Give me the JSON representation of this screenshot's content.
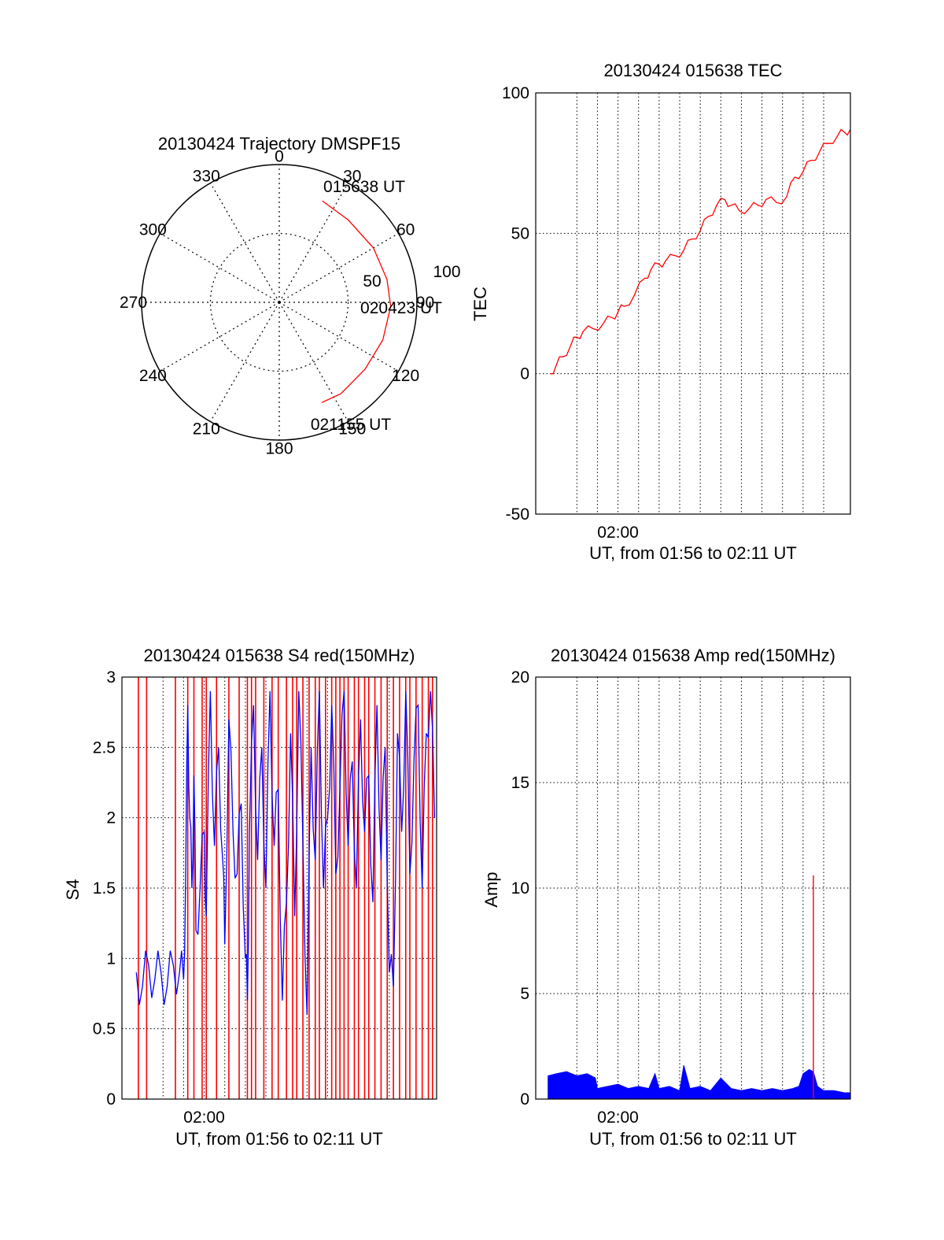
{
  "chart_data": [
    {
      "type": "polar",
      "title": "20130424 Trajectory DMSPF15",
      "angle_labels": [
        "0",
        "30",
        "60",
        "90",
        "120",
        "150",
        "180",
        "210",
        "240",
        "270",
        "300",
        "330"
      ],
      "radial_labels": [
        "50",
        "100"
      ],
      "radial_range": [
        0,
        100
      ],
      "grid": true,
      "series": [
        {
          "color": "#ff0000",
          "points": [
            {
              "az": 23,
              "r": 80
            },
            {
              "az": 40,
              "r": 78
            },
            {
              "az": 60,
              "r": 79
            },
            {
              "az": 78,
              "r": 80
            },
            {
              "az": 92,
              "r": 81
            },
            {
              "az": 110,
              "r": 80
            },
            {
              "az": 128,
              "r": 79
            },
            {
              "az": 146,
              "r": 80
            },
            {
              "az": 157,
              "r": 79
            }
          ]
        }
      ],
      "annotations": [
        {
          "text": "015638 UT",
          "az": 23,
          "r": 80
        },
        {
          "text": "020423 UT",
          "az": 92,
          "r": 81
        },
        {
          "text": "021155 UT",
          "az": 157,
          "r": 79
        }
      ]
    },
    {
      "type": "line",
      "title": "20130424 015638 TEC",
      "xlabel": "UT, from 01:56 to 02:11 UT",
      "ylabel": "TEC",
      "xlim": [
        0,
        15.3
      ],
      "ylim": [
        -50,
        100
      ],
      "yticks": [
        -50,
        0,
        50,
        100
      ],
      "xticks": [
        {
          "value": 4,
          "label": "02:00"
        }
      ],
      "x_gridlines": [
        2,
        3,
        4,
        5,
        6,
        7,
        8,
        9,
        10,
        11,
        12,
        13,
        14
      ],
      "grid": true,
      "series": [
        {
          "color": "#ff0000",
          "x": [
            0.7,
            1.0,
            1.3,
            1.7,
            2.0,
            2.3,
            2.8,
            3.3,
            3.7,
            4.0,
            4.3,
            4.8,
            5.3,
            5.6,
            6.0,
            6.3,
            6.8,
            7.2,
            7.6,
            8.0,
            8.4,
            8.8,
            9.2,
            9.5,
            9.9,
            10.4,
            10.8,
            11.2,
            11.7,
            12.2,
            12.6,
            13.0,
            13.4,
            13.8,
            14.2,
            14.7,
            15.0,
            15.3
          ],
          "y": [
            0,
            3,
            6,
            10,
            13,
            15,
            16,
            18,
            20,
            22,
            24,
            28,
            34,
            37,
            39,
            40,
            42,
            44,
            48,
            51,
            56,
            60,
            62,
            60,
            58,
            59,
            60,
            62,
            61,
            63,
            70,
            72,
            76,
            79,
            82,
            85,
            86,
            87
          ]
        }
      ]
    },
    {
      "type": "line",
      "title": "20130424 015638 S4 red(150MHz)",
      "xlabel": "UT, from 01:56 to 02:11 UT",
      "ylabel": "S4",
      "xlim": [
        0,
        15.3
      ],
      "ylim": [
        0,
        3
      ],
      "yticks": [
        0,
        0.5,
        1,
        1.5,
        2,
        2.5,
        3
      ],
      "ytick_labels": [
        "0",
        "0.5",
        "1",
        "1.5",
        "2",
        "2.5",
        "3"
      ],
      "xticks": [
        {
          "value": 4,
          "label": "02:00"
        }
      ],
      "x_gridlines": [
        2,
        3,
        4,
        5,
        6,
        7,
        8,
        9,
        10,
        11,
        12,
        13,
        14
      ],
      "grid": true,
      "red_spike_x": [
        0.8,
        1.2,
        2.6,
        3.2,
        3.5,
        3.9,
        4.1,
        4.6,
        5.2,
        5.7,
        6.1,
        6.3,
        6.5,
        6.9,
        7.3,
        7.6,
        8.0,
        8.3,
        8.5,
        8.8,
        9.1,
        9.4,
        9.6,
        9.9,
        10.2,
        10.4,
        10.6,
        10.8,
        11.0,
        11.3,
        11.5,
        11.8,
        12.0,
        12.3,
        12.6,
        12.9,
        13.2,
        13.5,
        13.8,
        14.0,
        14.3,
        14.6,
        14.9,
        15.1
      ],
      "series": [
        {
          "color": "#0000ff",
          "x": [
            0.7,
            1.0,
            1.3,
            1.6,
            1.9,
            2.2,
            2.5,
            2.8,
            3.0,
            3.1,
            3.2,
            3.3,
            3.4,
            3.5,
            3.6,
            3.8,
            4.0,
            4.1,
            4.3,
            4.5,
            4.7,
            4.9,
            5.0,
            5.2,
            5.4,
            5.6,
            5.8,
            6.0,
            6.1,
            6.2,
            6.4,
            6.6,
            6.8,
            7.0,
            7.2,
            7.4,
            7.6,
            7.8,
            8.0,
            8.2,
            8.4,
            8.6,
            8.8,
            9.0,
            9.2,
            9.4,
            9.6,
            9.8,
            10.0,
            10.2,
            10.4,
            10.6,
            10.8,
            11.0,
            11.2,
            11.4,
            11.6,
            11.8,
            12.0,
            12.2,
            12.4,
            12.6,
            12.8,
            13.0,
            13.2,
            13.4,
            13.6,
            13.8,
            14.0,
            14.2,
            14.4,
            14.6,
            14.8,
            15.0,
            15.2
          ],
          "y": [
            0.9,
            0.8,
            0.95,
            0.85,
            0.9,
            0.8,
            0.95,
            0.9,
            0.85,
            1.6,
            2.8,
            2.0,
            1.5,
            2.3,
            1.2,
            1.5,
            1.9,
            1.3,
            2.9,
            1.8,
            2.5,
            1.7,
            1.1,
            2.7,
            1.9,
            1.6,
            2.1,
            1.0,
            0.7,
            1.9,
            2.8,
            1.7,
            2.5,
            1.5,
            2.9,
            1.8,
            2.2,
            0.7,
            1.4,
            2.6,
            1.3,
            2.9,
            1.8,
            0.6,
            2.5,
            1.7,
            2.9,
            1.5,
            2.0,
            2.8,
            1.6,
            2.2,
            2.9,
            1.8,
            2.4,
            1.5,
            2.7,
            1.9,
            2.3,
            1.4,
            2.8,
            1.7,
            2.5,
            0.9,
            0.8,
            2.6,
            1.9,
            2.9,
            1.6,
            2.4,
            2.8,
            1.5,
            2.6,
            2.9,
            2.0
          ]
        }
      ]
    },
    {
      "type": "line",
      "title": "20130424 015638 Amp red(150MHz)",
      "xlabel": "UT, from 01:56 to 02:11 UT",
      "ylabel": "Amp",
      "xlim": [
        0,
        15.3
      ],
      "ylim": [
        0,
        20
      ],
      "yticks": [
        0,
        5,
        10,
        15,
        20
      ],
      "xticks": [
        {
          "value": 4,
          "label": "02:00"
        }
      ],
      "x_gridlines": [
        2,
        3,
        4,
        5,
        6,
        7,
        8,
        9,
        10,
        11,
        12,
        13,
        14
      ],
      "grid": true,
      "red_spike": {
        "x": 13.5,
        "y": 10.6
      },
      "series": [
        {
          "color": "#0000ff",
          "x": [
            0.6,
            1.0,
            1.5,
            2.0,
            2.5,
            2.9,
            3.0,
            3.5,
            4.0,
            4.5,
            5.0,
            5.5,
            5.8,
            6.0,
            6.5,
            7.0,
            7.2,
            7.5,
            8.0,
            8.5,
            9.0,
            9.5,
            10.0,
            10.5,
            11.0,
            11.5,
            12.0,
            12.5,
            12.8,
            13.0,
            13.3,
            13.5,
            13.7,
            14.0,
            14.5,
            15.0,
            15.3
          ],
          "y": [
            1.1,
            1.2,
            1.3,
            1.1,
            1.2,
            1.0,
            0.5,
            0.6,
            0.7,
            0.5,
            0.6,
            0.5,
            1.2,
            0.5,
            0.6,
            0.4,
            1.6,
            0.5,
            0.6,
            0.4,
            1.0,
            0.5,
            0.4,
            0.5,
            0.4,
            0.5,
            0.4,
            0.5,
            0.6,
            1.2,
            1.4,
            1.3,
            0.6,
            0.4,
            0.4,
            0.3,
            0.3
          ]
        }
      ]
    }
  ]
}
